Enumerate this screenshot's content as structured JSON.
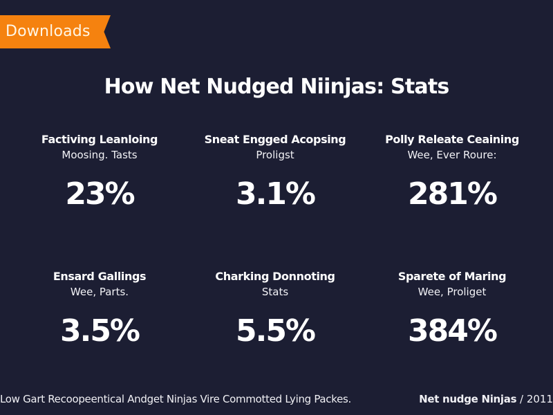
{
  "ribbon": {
    "label": "Downloads",
    "color": "#f5820f"
  },
  "title": "How Net Nudged Niinjas: Stats",
  "stats": [
    {
      "heading": "Factiving Leanloing",
      "sub": "Moosing. Tasts",
      "value": "23%"
    },
    {
      "heading": "Sneat Engged Acopsing",
      "sub": "Proligst",
      "value": "3.1%"
    },
    {
      "heading": "Polly Releate Ceaining",
      "sub": "Wee, Ever Roure:",
      "value": "281%"
    },
    {
      "heading": "Ensard Gallings",
      "sub": "Wee, Parts.",
      "value": "3.5%"
    },
    {
      "heading": "Charking Donnoting",
      "sub": "Stats",
      "value": "5.5%"
    },
    {
      "heading": "Sparete of Maring",
      "sub": "Wee, Proliget",
      "value": "384%"
    }
  ],
  "footer": {
    "caption": "Low Gart Recoopeentical Andget Ninjas Vire Commotted Lying Packes.",
    "brand": "Net nudge Ninjas",
    "separator": " / ",
    "year": "2011"
  },
  "colors": {
    "background": "#1c1e33",
    "text": "#ffffff",
    "accent": "#f5820f"
  }
}
